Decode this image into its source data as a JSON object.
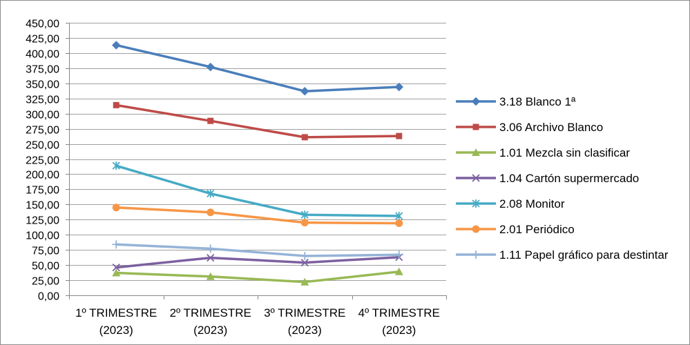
{
  "chart_data": {
    "type": "line",
    "categories": [
      "1º TRIMESTRE (2023)",
      "2º TRIMESTRE (2023)",
      "3º TRIMESTRE (2023)",
      "4º TRIMESTRE (2023)"
    ],
    "series": [
      {
        "name": "3.18 Blanco 1ª",
        "values": [
          413,
          377,
          337,
          344
        ],
        "color": "#4A7EBB",
        "marker": "diamond"
      },
      {
        "name": "3.06 Archivo Blanco",
        "values": [
          314,
          288,
          261,
          263
        ],
        "color": "#BE4B48",
        "marker": "square"
      },
      {
        "name": "1.01 Mezcla sin clasificar",
        "values": [
          37,
          31,
          22,
          39
        ],
        "color": "#98B954",
        "marker": "triangle"
      },
      {
        "name": "1.04 Cartón supermercado",
        "values": [
          46,
          62,
          54,
          63
        ],
        "color": "#7D60A0",
        "marker": "x"
      },
      {
        "name": "2.08 Monitor",
        "values": [
          214,
          168,
          133,
          131
        ],
        "color": "#46AAC5",
        "marker": "asterisk"
      },
      {
        "name": "2.01 Periódico",
        "values": [
          145,
          137,
          120,
          119
        ],
        "color": "#F79646",
        "marker": "circle"
      },
      {
        "name": "1.11 Papel gráfico para destintar",
        "values": [
          84,
          77,
          65,
          67
        ],
        "color": "#95B3D7",
        "marker": "plus"
      }
    ],
    "ylim": [
      0,
      450
    ],
    "ytick_labels": [
      "0,00",
      "25,00",
      "50,00",
      "75,00",
      "100,00",
      "125,00",
      "150,00",
      "175,00",
      "200,00",
      "225,00",
      "250,00",
      "275,00",
      "300,00",
      "325,00",
      "350,00",
      "375,00",
      "400,00",
      "425,00",
      "450,00"
    ],
    "grid": true,
    "legend": "right"
  }
}
